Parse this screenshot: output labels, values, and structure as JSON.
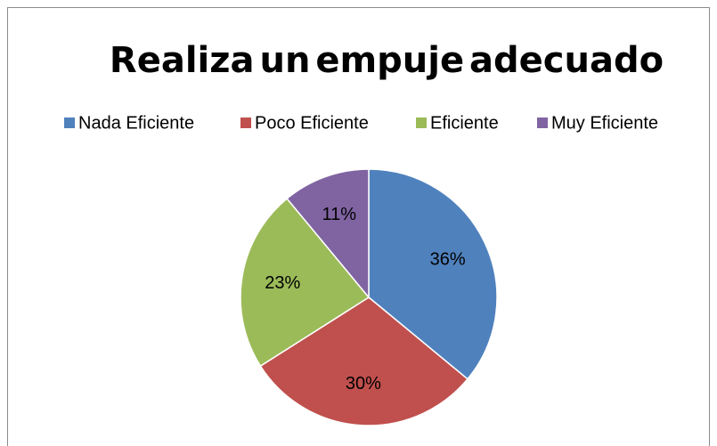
{
  "chart_data": {
    "type": "pie",
    "title": "Realiza un empuje adecuado",
    "categories": [
      "Nada Eficiente",
      "Poco Eficiente",
      "Eficiente",
      "Muy Eficiente"
    ],
    "values": [
      36,
      30,
      23,
      11
    ],
    "value_labels": [
      "36%",
      "30%",
      "23%",
      "11%"
    ],
    "colors": [
      "#4f81bd",
      "#c0504d",
      "#9bbb59",
      "#8064a2"
    ],
    "legend": "top"
  }
}
